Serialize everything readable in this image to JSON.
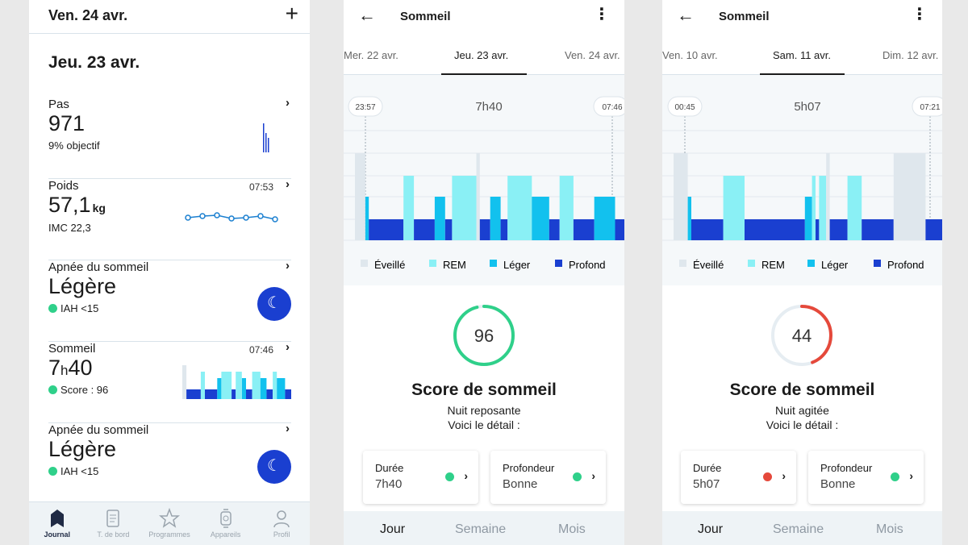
{
  "colors": {
    "awake": "#dfe7ed",
    "rem": "#8af0f5",
    "light": "#12c1ee",
    "deep": "#1a3fd0",
    "accent_blue": "#1a3fd0",
    "green": "#2fd08a",
    "red": "#e5493b"
  },
  "journal": {
    "header_date": "Ven. 24 avr.",
    "plus_icon": "plus-icon",
    "day_title": "Jeu. 23 avr.",
    "steps": {
      "label": "Pas",
      "value": "971",
      "sub": "9% objectif"
    },
    "weight": {
      "label": "Poids",
      "value": "57,1",
      "unit": "kg",
      "sub": "IMC 22,3",
      "time": "07:53"
    },
    "apnea1": {
      "label": "Apnée du sommeil",
      "value": "Légère",
      "sub": "IAH <15"
    },
    "sleep": {
      "label": "Sommeil",
      "hours": "7",
      "h_sep": "h",
      "minutes": "40",
      "sub": "Score : 96",
      "time": "07:46"
    },
    "apnea2": {
      "label": "Apnée du sommeil",
      "value": "Légère",
      "sub": "IAH <15"
    },
    "nav": [
      {
        "label": "Journal",
        "icon": "journal-icon",
        "active": true
      },
      {
        "label": "T. de bord",
        "icon": "dashboard-icon",
        "active": false
      },
      {
        "label": "Programmes",
        "icon": "star-icon",
        "active": false
      },
      {
        "label": "Appareils",
        "icon": "watch-icon",
        "active": false
      },
      {
        "label": "Profil",
        "icon": "profile-icon",
        "active": false
      }
    ]
  },
  "sleep1": {
    "title": "Sommeil",
    "tabs": [
      "Mer. 22 avr.",
      "Jeu. 23 avr.",
      "Ven. 24 avr."
    ],
    "active_tab": 1,
    "start": "23:57",
    "end": "07:46",
    "duration": "7h40",
    "legend": [
      "Éveillé",
      "REM",
      "Léger",
      "Profond"
    ],
    "score": {
      "value": 96,
      "percent": 96,
      "color": "#2fd08a"
    },
    "score_title": "Score de sommeil",
    "quality": "Nuit reposante",
    "detail": "Voici le détail :",
    "cards": [
      {
        "label": "Durée",
        "value": "7h40",
        "dot": "#2fd08a"
      },
      {
        "label": "Profondeur",
        "value": "Bonne",
        "dot": "#2fd08a"
      }
    ],
    "bottom": [
      "Jour",
      "Semaine",
      "Mois"
    ]
  },
  "sleep2": {
    "title": "Sommeil",
    "tabs": [
      "Ven. 10 avr.",
      "Sam. 11 avr.",
      "Dim. 12 avr."
    ],
    "active_tab": 1,
    "start": "00:45",
    "end": "07:21",
    "duration": "5h07",
    "legend": [
      "Éveillé",
      "REM",
      "Léger",
      "Profond"
    ],
    "score": {
      "value": 44,
      "percent": 44,
      "color": "#e5493b"
    },
    "score_title": "Score de sommeil",
    "quality": "Nuit agitée",
    "detail": "Voici le détail :",
    "cards": [
      {
        "label": "Durée",
        "value": "5h07",
        "dot": "#e5493b"
      },
      {
        "label": "Profondeur",
        "value": "Bonne",
        "dot": "#2fd08a"
      }
    ],
    "bottom": [
      "Jour",
      "Semaine",
      "Mois"
    ]
  }
}
